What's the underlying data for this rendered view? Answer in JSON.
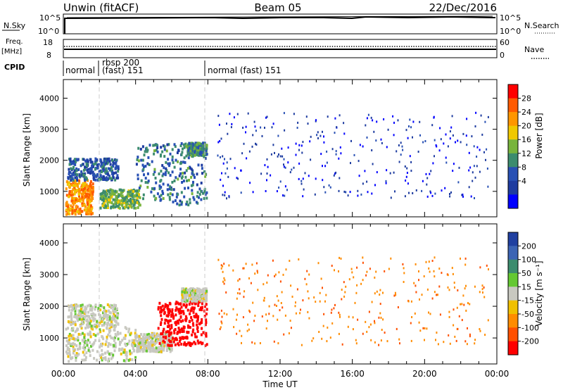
{
  "header": {
    "station": "Unwin (fitACF)",
    "beam": "Beam 05",
    "date": "22/Dec/2016"
  },
  "panels": {
    "nsky": {
      "label": "N.Sky",
      "ticks_left": [
        "10^5",
        "10^0"
      ],
      "ticks_right": [
        "10^5",
        "10^0"
      ],
      "right_label": "N.Search"
    },
    "freq": {
      "label_1": "Freq.",
      "label_2": "[MHz]",
      "ticks_left": [
        "18",
        "8"
      ],
      "ticks_right": [
        "60",
        "0"
      ],
      "right_label": "Nave"
    },
    "cpid": {
      "label": "CPID",
      "segments": [
        {
          "text": "normal",
          "text2": ""
        },
        {
          "text": "rbsp 200",
          "text2": "(fast) 151"
        },
        {
          "text": "normal (fast) 151",
          "text2": ""
        }
      ]
    }
  },
  "power_colorbar": {
    "title": "Power [dB]",
    "ticks": [
      "28",
      "24",
      "20",
      "16",
      "12",
      "8",
      "4"
    ],
    "colors": [
      "#ff0000",
      "#ff5a00",
      "#ff9600",
      "#f0c800",
      "#78b43c",
      "#3c8c6e",
      "#2850b4",
      "#1e3ca0",
      "#0000ff"
    ]
  },
  "velocity_colorbar": {
    "title": "Velocity [m s⁻¹]",
    "ticks": [
      "200",
      "100",
      "50",
      "15",
      "-15",
      "-50",
      "-100",
      "-200"
    ],
    "colors": [
      "#2040a0",
      "#3c64b4",
      "#3c8c6e",
      "#64c832",
      "#c8c8c0",
      "#f0c000",
      "#ff8c00",
      "#ff5000",
      "#ff0000"
    ]
  },
  "axes": {
    "ylabel": "Slant Range [km]",
    "yticks": [
      "4000",
      "3000",
      "2000",
      "1000"
    ],
    "xlabel": "Time UT",
    "xticks": [
      "00:00",
      "04:00",
      "08:00",
      "12:00",
      "16:00",
      "20:00",
      "00:00"
    ]
  },
  "chart_data": [
    {
      "type": "heatmap",
      "title": "Power [dB]",
      "xlabel": "Time UT",
      "ylabel": "Slant Range [km]",
      "xlim_hours": [
        0,
        24
      ],
      "ylim": [
        180,
        4600
      ],
      "zlim": [
        0,
        30
      ],
      "regions": [
        {
          "t0": 0.1,
          "t1": 1.6,
          "r0": 300,
          "r1": 1400,
          "value": 22
        },
        {
          "t0": 2.0,
          "t1": 4.2,
          "r0": 500,
          "r1": 1100,
          "value": 14
        },
        {
          "t0": 0.2,
          "t1": 3.0,
          "r0": 1400,
          "r1": 2100,
          "value": 8
        },
        {
          "t0": 4.0,
          "t1": 7.9,
          "r0": 600,
          "r1": 2600,
          "value": 10
        },
        {
          "t0": 6.8,
          "t1": 7.9,
          "r0": 2200,
          "r1": 2600,
          "value": 12
        },
        {
          "t0": 8.5,
          "t1": 23.5,
          "r0": 800,
          "r1": 3600,
          "value": 4
        }
      ]
    },
    {
      "type": "heatmap",
      "title": "Velocity [m s⁻¹]",
      "xlabel": "Time UT",
      "ylabel": "Slant Range [km]",
      "xlim_hours": [
        0,
        24
      ],
      "ylim": [
        180,
        4600
      ],
      "zlim": [
        -200,
        200
      ],
      "regions": [
        {
          "t0": 0.1,
          "t1": 4.0,
          "r0": 300,
          "r1": 1400,
          "value": 0
        },
        {
          "t0": 0.2,
          "t1": 3.0,
          "r0": 1400,
          "r1": 2100,
          "value": 0
        },
        {
          "t0": 4.0,
          "t1": 6.0,
          "r0": 600,
          "r1": 1200,
          "value": 0
        },
        {
          "t0": 5.2,
          "t1": 7.9,
          "r0": 800,
          "r1": 2200,
          "value": -200
        },
        {
          "t0": 6.5,
          "t1": 7.9,
          "r0": 2200,
          "r1": 2600,
          "value": 0
        },
        {
          "t0": 8.5,
          "t1": 23.5,
          "r0": 800,
          "r1": 3600,
          "value": -100
        }
      ]
    }
  ]
}
